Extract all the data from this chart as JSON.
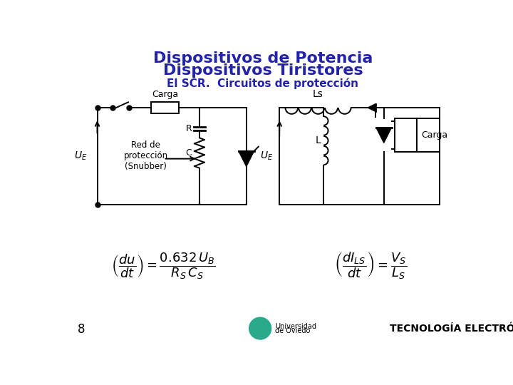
{
  "title_line1": "Dispositivos de Potencia",
  "title_line2": "Dispositivos Tiristores",
  "subtitle": "El SCR.  Circuitos de protección",
  "title_color": "#2222aa",
  "subtitle_color": "#2222aa",
  "page_number": "8",
  "footer_text": "TECNOLOGÍA ELECTRÓNICA",
  "bg": "#ffffff"
}
